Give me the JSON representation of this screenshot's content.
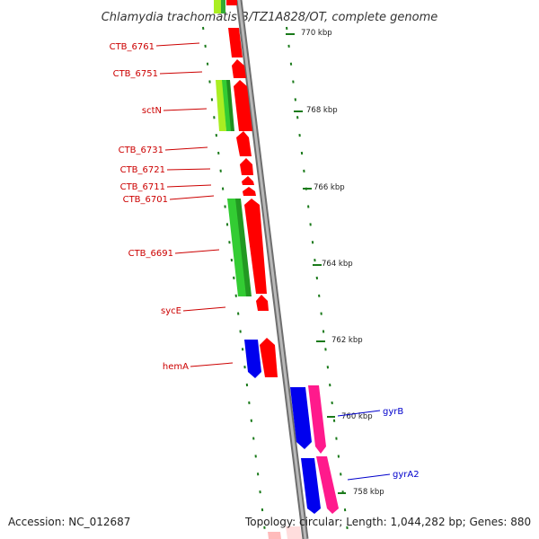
{
  "title": "Chlamydia trachomatis B/TZ1A828/OT, complete genome",
  "footer": {
    "accession": "Accession: NC_012687",
    "summary": "Topology: circular; Length: 1,044,282 bp; Genes: 880"
  },
  "colors": {
    "forward_gene": "#ff0000",
    "reverse_gene": "#0000ee",
    "rna_gene": "#ff1a8c",
    "cog_feature": "#33cc33",
    "cog_feature_alt": "#aaee22",
    "backbone": "#888888",
    "tick": "#1a7a1a",
    "label_red": "#cc0000",
    "label_blue": "#0000cc"
  },
  "ticks": [
    "770 kbp",
    "768 kbp",
    "766 kbp",
    "764 kbp",
    "762 kbp",
    "760 kbp",
    "758 kbp"
  ],
  "gene_labels": [
    {
      "name": "CTB_6761",
      "color": "red"
    },
    {
      "name": "CTB_6751",
      "color": "red"
    },
    {
      "name": "sctN",
      "color": "red"
    },
    {
      "name": "CTB_6731",
      "color": "red"
    },
    {
      "name": "CTB_6721",
      "color": "red"
    },
    {
      "name": "CTB_6711",
      "color": "red"
    },
    {
      "name": "CTB_6701",
      "color": "red"
    },
    {
      "name": "CTB_6691",
      "color": "red"
    },
    {
      "name": "sycE",
      "color": "red"
    },
    {
      "name": "hemA",
      "color": "red"
    },
    {
      "name": "gyrB",
      "color": "blue"
    },
    {
      "name": "gyrA2",
      "color": "blue"
    }
  ]
}
